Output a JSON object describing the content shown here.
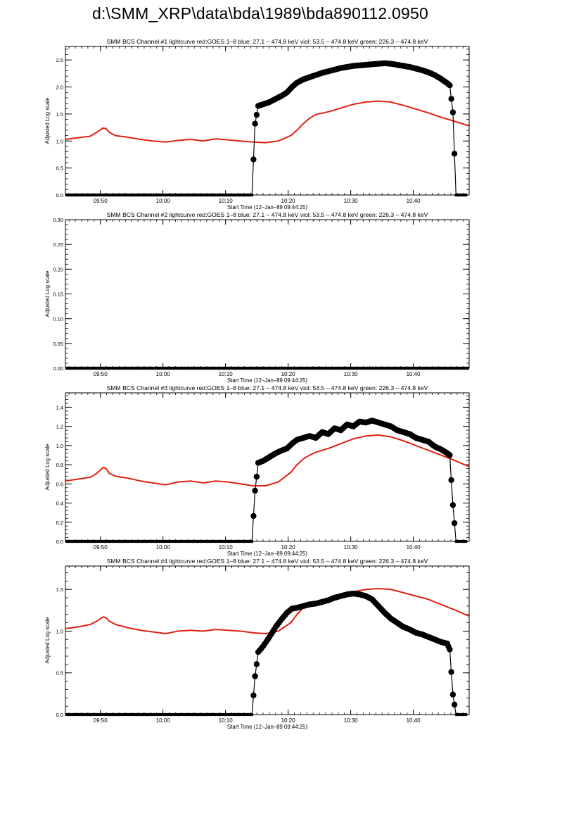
{
  "page": {
    "title": "d:\\SMM_XRP\\data\\bda\\1989\\bda890112.0950"
  },
  "colors": {
    "goes": "#e02010",
    "bcs": "#000000",
    "axis": "#000000"
  },
  "chart_data": [
    {
      "type": "line",
      "title": "SMM BCS Channel #1 lightcurve  red:GOES 1–8  blue: 27.1 – 474.8 keV  viol: 53.5 – 474.8 keV  green: 226.3 – 474.8 keV",
      "xlabel": "Start Time (12–Jan–89 09:44:25)",
      "ylabel": "Adjusted Log scale",
      "x_unit": "minutes after 09:44:25",
      "xlim": [
        0,
        64.5
      ],
      "ylim": [
        0,
        2.75
      ],
      "x_ticks": [
        5.58,
        15.58,
        25.58,
        35.58,
        45.58,
        55.58
      ],
      "x_tick_labels": [
        "09:50",
        "10:00",
        "10:10",
        "10:20",
        "10:30",
        "10:40"
      ],
      "y_ticks": [
        0,
        0.5,
        1,
        1.5,
        2,
        2.5
      ],
      "y_tick_labels": [
        "0.0",
        "0.5",
        "1.0",
        "1.5",
        "2.0",
        "2.5"
      ],
      "grid": false,
      "series": [
        {
          "role": "goes",
          "x": [
            0,
            2,
            4,
            5,
            6,
            6.5,
            7,
            8,
            10,
            12,
            14,
            16,
            18,
            20,
            22,
            24,
            26,
            28,
            30,
            32,
            34,
            36,
            37,
            38,
            39,
            40,
            42,
            44,
            46,
            48,
            50,
            52,
            54,
            56,
            58,
            60,
            62,
            64.5
          ],
          "y": [
            1.03,
            1.06,
            1.09,
            1.16,
            1.24,
            1.23,
            1.16,
            1.1,
            1.07,
            1.03,
            1.0,
            0.98,
            1.01,
            1.03,
            1.0,
            1.04,
            1.02,
            1.0,
            0.98,
            0.97,
            1.0,
            1.1,
            1.2,
            1.32,
            1.42,
            1.49,
            1.54,
            1.61,
            1.68,
            1.72,
            1.74,
            1.72,
            1.66,
            1.59,
            1.52,
            1.44,
            1.37,
            1.28
          ]
        },
        {
          "role": "bcs",
          "x": [
            0,
            29.8,
            30.3,
            30.8,
            31.6,
            32.6,
            33.6,
            34.6,
            35.4,
            36.2,
            37.0,
            38.0,
            39.0,
            40.0,
            41.0,
            42.0,
            43.0,
            44.0,
            45.0,
            46.0,
            47.0,
            48.0,
            49.0,
            50.0,
            51.0,
            52.0,
            53.0,
            54.0,
            55.0,
            56.0,
            57.0,
            58.0,
            59.0,
            60.0,
            61.0,
            61.4,
            61.9,
            62.4,
            64.0
          ],
          "y": [
            0,
            0,
            1.32,
            1.65,
            1.68,
            1.72,
            1.78,
            1.84,
            1.9,
            2.0,
            2.08,
            2.14,
            2.18,
            2.22,
            2.26,
            2.29,
            2.32,
            2.35,
            2.37,
            2.39,
            2.4,
            2.41,
            2.42,
            2.43,
            2.44,
            2.43,
            2.41,
            2.39,
            2.37,
            2.34,
            2.31,
            2.27,
            2.22,
            2.15,
            2.07,
            2.03,
            1.53,
            0.0,
            0.0
          ]
        }
      ]
    },
    {
      "type": "line",
      "title": "SMM BCS Channel #2 lightcurve  red:GOES 1–8  blue: 27.1 – 474.8 keV  viol: 53.5 – 474.8 keV  green: 226.3 – 474.8 keV",
      "xlabel": "Start Time (12–Jan–89 09:44:25)",
      "ylabel": "Adjusted Log scale",
      "x_unit": "minutes after 09:44:25",
      "xlim": [
        0,
        64.5
      ],
      "ylim": [
        0,
        0.3
      ],
      "x_ticks": [
        5.58,
        15.58,
        25.58,
        35.58,
        45.58,
        55.58
      ],
      "x_tick_labels": [
        "09:50",
        "10:00",
        "10:10",
        "10:20",
        "10:30",
        "10:40"
      ],
      "y_ticks": [
        0,
        0.05,
        0.1,
        0.15,
        0.2,
        0.25,
        0.3
      ],
      "y_tick_labels": [
        "0.00",
        "0.05",
        "0.10",
        "0.15",
        "0.20",
        "0.25",
        "0.30"
      ],
      "grid": false,
      "series": [
        {
          "role": "bcs",
          "x": [
            0,
            64.5
          ],
          "y": [
            0,
            0
          ]
        }
      ]
    },
    {
      "type": "line",
      "title": "SMM BCS Channel #3 lightcurve  red:GOES 1–8  blue: 27.1 – 474.8 keV  viol: 53.5 – 474.8 keV  green: 226.3 – 474.8 keV",
      "xlabel": "Start Time (12–Jan–89 09:44:25)",
      "ylabel": "Adjusted Log scale",
      "x_unit": "minutes after 09:44:25",
      "xlim": [
        0,
        64.5
      ],
      "ylim": [
        0,
        1.55
      ],
      "x_ticks": [
        5.58,
        15.58,
        25.58,
        35.58,
        45.58,
        55.58
      ],
      "x_tick_labels": [
        "09:50",
        "10:00",
        "10:10",
        "10:20",
        "10:30",
        "10:40"
      ],
      "y_ticks": [
        0,
        0.2,
        0.4,
        0.6,
        0.8,
        1.0,
        1.2,
        1.4
      ],
      "y_tick_labels": [
        "0.0",
        "0.2",
        "0.4",
        "0.6",
        "0.8",
        "1.0",
        "1.2",
        "1.4"
      ],
      "grid": false,
      "series": [
        {
          "role": "goes",
          "x": [
            0,
            2,
            4,
            5,
            6,
            6.5,
            7,
            8,
            10,
            12,
            14,
            16,
            18,
            20,
            22,
            24,
            26,
            28,
            30,
            32,
            34,
            36,
            37,
            38,
            39,
            40,
            42,
            44,
            46,
            48,
            50,
            52,
            54,
            56,
            58,
            60,
            62,
            64.5
          ],
          "y": [
            0.63,
            0.65,
            0.67,
            0.71,
            0.77,
            0.76,
            0.71,
            0.68,
            0.66,
            0.63,
            0.61,
            0.59,
            0.62,
            0.63,
            0.61,
            0.63,
            0.62,
            0.6,
            0.58,
            0.58,
            0.62,
            0.72,
            0.8,
            0.86,
            0.9,
            0.93,
            0.97,
            1.02,
            1.07,
            1.1,
            1.11,
            1.09,
            1.05,
            1.0,
            0.95,
            0.9,
            0.85,
            0.78
          ]
        },
        {
          "role": "bcs",
          "x": [
            0,
            29.8,
            30.3,
            30.8,
            31.6,
            32.6,
            33.6,
            34.6,
            35.4,
            36.2,
            37.0,
            38.0,
            39.0,
            40.0,
            41.0,
            42.0,
            43.0,
            44.0,
            45.0,
            46.0,
            47.0,
            48.0,
            49.0,
            50.0,
            51.0,
            52.0,
            53.0,
            54.0,
            55.0,
            56.0,
            57.0,
            58.0,
            59.0,
            60.0,
            61.0,
            61.4,
            61.9,
            62.4,
            64.0
          ],
          "y": [
            0,
            0,
            0.53,
            0.82,
            0.84,
            0.88,
            0.92,
            0.95,
            0.97,
            1.02,
            1.06,
            1.08,
            1.1,
            1.08,
            1.14,
            1.12,
            1.18,
            1.16,
            1.22,
            1.2,
            1.25,
            1.24,
            1.26,
            1.24,
            1.22,
            1.2,
            1.16,
            1.14,
            1.12,
            1.08,
            1.06,
            1.04,
            0.99,
            0.96,
            0.92,
            0.9,
            0.38,
            0.0,
            0.0
          ]
        }
      ]
    },
    {
      "type": "line",
      "title": "SMM BCS Channel #4 lightcurve  red:GOES 1–8  blue: 27.1 – 474.8 keV  viol: 53.5 – 474.8 keV  green: 226.3 – 474.8 keV",
      "xlabel": "Start Time (12–Jan–89 09:44:25)",
      "ylabel": "Adjusted Log scale",
      "x_unit": "minutes after 09:44:25",
      "xlim": [
        0,
        64.5
      ],
      "ylim": [
        0,
        1.78
      ],
      "x_ticks": [
        5.58,
        15.58,
        25.58,
        35.58,
        45.58,
        55.58
      ],
      "x_tick_labels": [
        "09:50",
        "10:00",
        "10:10",
        "10:20",
        "10:30",
        "10:40"
      ],
      "y_ticks": [
        0,
        0.5,
        1,
        1.5
      ],
      "y_tick_labels": [
        "0.0",
        "0.5",
        "1.0",
        "1.5"
      ],
      "grid": false,
      "series": [
        {
          "role": "goes",
          "x": [
            0,
            2,
            4,
            5,
            6,
            6.5,
            7,
            8,
            10,
            12,
            14,
            16,
            18,
            20,
            22,
            24,
            26,
            28,
            30,
            32,
            34,
            36,
            37,
            38,
            39,
            40,
            42,
            44,
            46,
            48,
            50,
            52,
            54,
            56,
            58,
            60,
            62,
            64.5
          ],
          "y": [
            1.03,
            1.05,
            1.08,
            1.12,
            1.17,
            1.16,
            1.12,
            1.08,
            1.04,
            1.01,
            0.99,
            0.97,
            1.0,
            1.01,
            1.0,
            1.02,
            1.01,
            1.0,
            0.98,
            0.97,
            1.0,
            1.1,
            1.2,
            1.28,
            1.33,
            1.35,
            1.39,
            1.43,
            1.47,
            1.5,
            1.51,
            1.5,
            1.46,
            1.42,
            1.38,
            1.32,
            1.26,
            1.18
          ]
        },
        {
          "role": "bcs",
          "x": [
            0,
            29.8,
            30.3,
            30.8,
            31.6,
            32.6,
            33.6,
            34.6,
            35.4,
            36.2,
            37.0,
            38.0,
            39.0,
            40.0,
            41.0,
            42.0,
            43.0,
            44.0,
            45.0,
            46.0,
            47.0,
            48.0,
            49.0,
            50.0,
            51.0,
            52.0,
            53.0,
            54.0,
            55.0,
            56.0,
            57.0,
            58.0,
            59.0,
            60.0,
            61.0,
            61.4,
            61.9,
            62.4,
            64.0
          ],
          "y": [
            0,
            0,
            0.46,
            0.75,
            0.82,
            0.93,
            1.05,
            1.15,
            1.22,
            1.27,
            1.28,
            1.3,
            1.32,
            1.33,
            1.35,
            1.37,
            1.4,
            1.42,
            1.44,
            1.45,
            1.44,
            1.42,
            1.38,
            1.3,
            1.22,
            1.15,
            1.1,
            1.05,
            1.02,
            0.98,
            0.96,
            0.93,
            0.9,
            0.87,
            0.85,
            0.78,
            0.24,
            0.0,
            0.0
          ]
        }
      ]
    }
  ]
}
